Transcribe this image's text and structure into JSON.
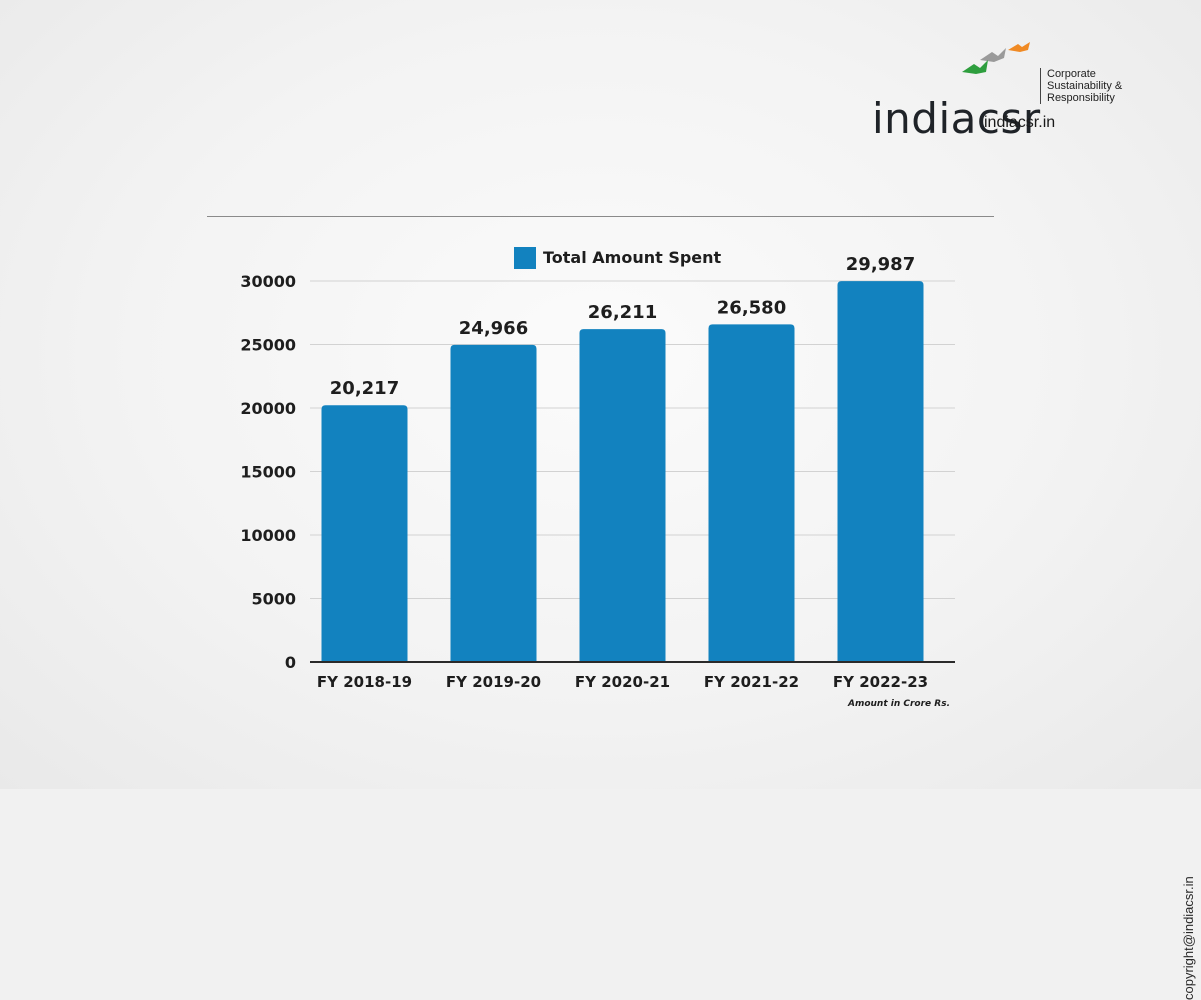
{
  "brand": {
    "logo_text": "indiacsr",
    "tagline": [
      "Corporate",
      "Sustainability &",
      "Responsibility"
    ],
    "site": "indiacsr.in",
    "bird_colors": [
      "#9a9a9a",
      "#f08a24",
      "#2e9e3e"
    ]
  },
  "copyright": "copyright@indiacsr.in",
  "chart_data": {
    "type": "bar",
    "categories": [
      "FY 2018-19",
      "FY 2019-20",
      "FY 2020-21",
      "FY 2021-22",
      "FY 2022-23"
    ],
    "series": [
      {
        "name": "Total Amount Spent",
        "values": [
          20217,
          24966,
          26211,
          26580,
          29987
        ],
        "labels": [
          "20,217",
          "24,966",
          "26,211",
          "26,580",
          "29,987"
        ],
        "color": "#1282bf"
      }
    ],
    "ylim": [
      0,
      30000
    ],
    "yticks": [
      0,
      5000,
      10000,
      15000,
      20000,
      25000,
      30000
    ],
    "grid": true,
    "legend_position": "top-center",
    "note": "Amount in Crore Rs."
  }
}
